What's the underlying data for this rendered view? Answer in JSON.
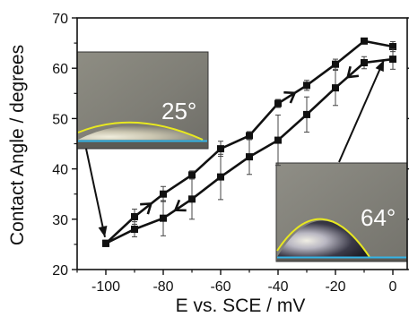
{
  "chart_data": {
    "type": "line",
    "title": "",
    "xlabel": "E vs. SCE / mV",
    "ylabel": "Contact Angle / degrees",
    "xlim": [
      -110,
      5
    ],
    "ylim": [
      20,
      70
    ],
    "x_ticks": [
      -100,
      -80,
      -60,
      -40,
      -20,
      0
    ],
    "x_tick_labels": [
      "-100",
      "-80",
      "-60",
      "-40",
      "-20",
      "0"
    ],
    "y_ticks": [
      20,
      30,
      40,
      50,
      60,
      70
    ],
    "y_tick_labels": [
      "20",
      "30",
      "40",
      "50",
      "60",
      "70"
    ],
    "grid": false,
    "series": [
      {
        "x": [
          -100,
          -90,
          -80,
          -70,
          -60,
          -50,
          -40,
          -30,
          -20,
          -10,
          0
        ],
        "y": [
          25.2,
          30.5,
          35.0,
          38.8,
          44.0,
          46.6,
          53.0,
          56.6,
          60.8,
          65.4,
          64.3
        ],
        "err": [
          0.6,
          1.5,
          1.5,
          0.8,
          1.5,
          0.8,
          0.8,
          1.0,
          1.0,
          0.5,
          1.0
        ],
        "color": "#111111"
      },
      {
        "x": [
          -100,
          -90,
          -80,
          -70,
          -60,
          -50,
          -40,
          -30,
          -20,
          -10,
          0
        ],
        "y": [
          25.2,
          28.0,
          30.2,
          34.0,
          38.4,
          42.4,
          45.7,
          50.8,
          56.1,
          61.1,
          61.8
        ],
        "err": [
          0.6,
          1.5,
          3.5,
          4.0,
          4.5,
          3.5,
          5.0,
          3.5,
          3.5,
          1.2,
          2.0
        ],
        "color": "#111111"
      }
    ],
    "annotations": [
      {
        "text": "25°",
        "points_to": {
          "x": -100,
          "y": 25.2
        }
      },
      {
        "text": "64°",
        "points_to": {
          "x": 0,
          "y": 62.5
        }
      }
    ],
    "direction_arrows": [
      {
        "series": 0,
        "at_x": -85,
        "direction": "forward"
      },
      {
        "series": 0,
        "at_x": -35,
        "direction": "forward"
      },
      {
        "series": 1,
        "at_x": -15,
        "direction": "backward"
      },
      {
        "series": 1,
        "at_x": -75,
        "direction": "backward"
      }
    ]
  }
}
